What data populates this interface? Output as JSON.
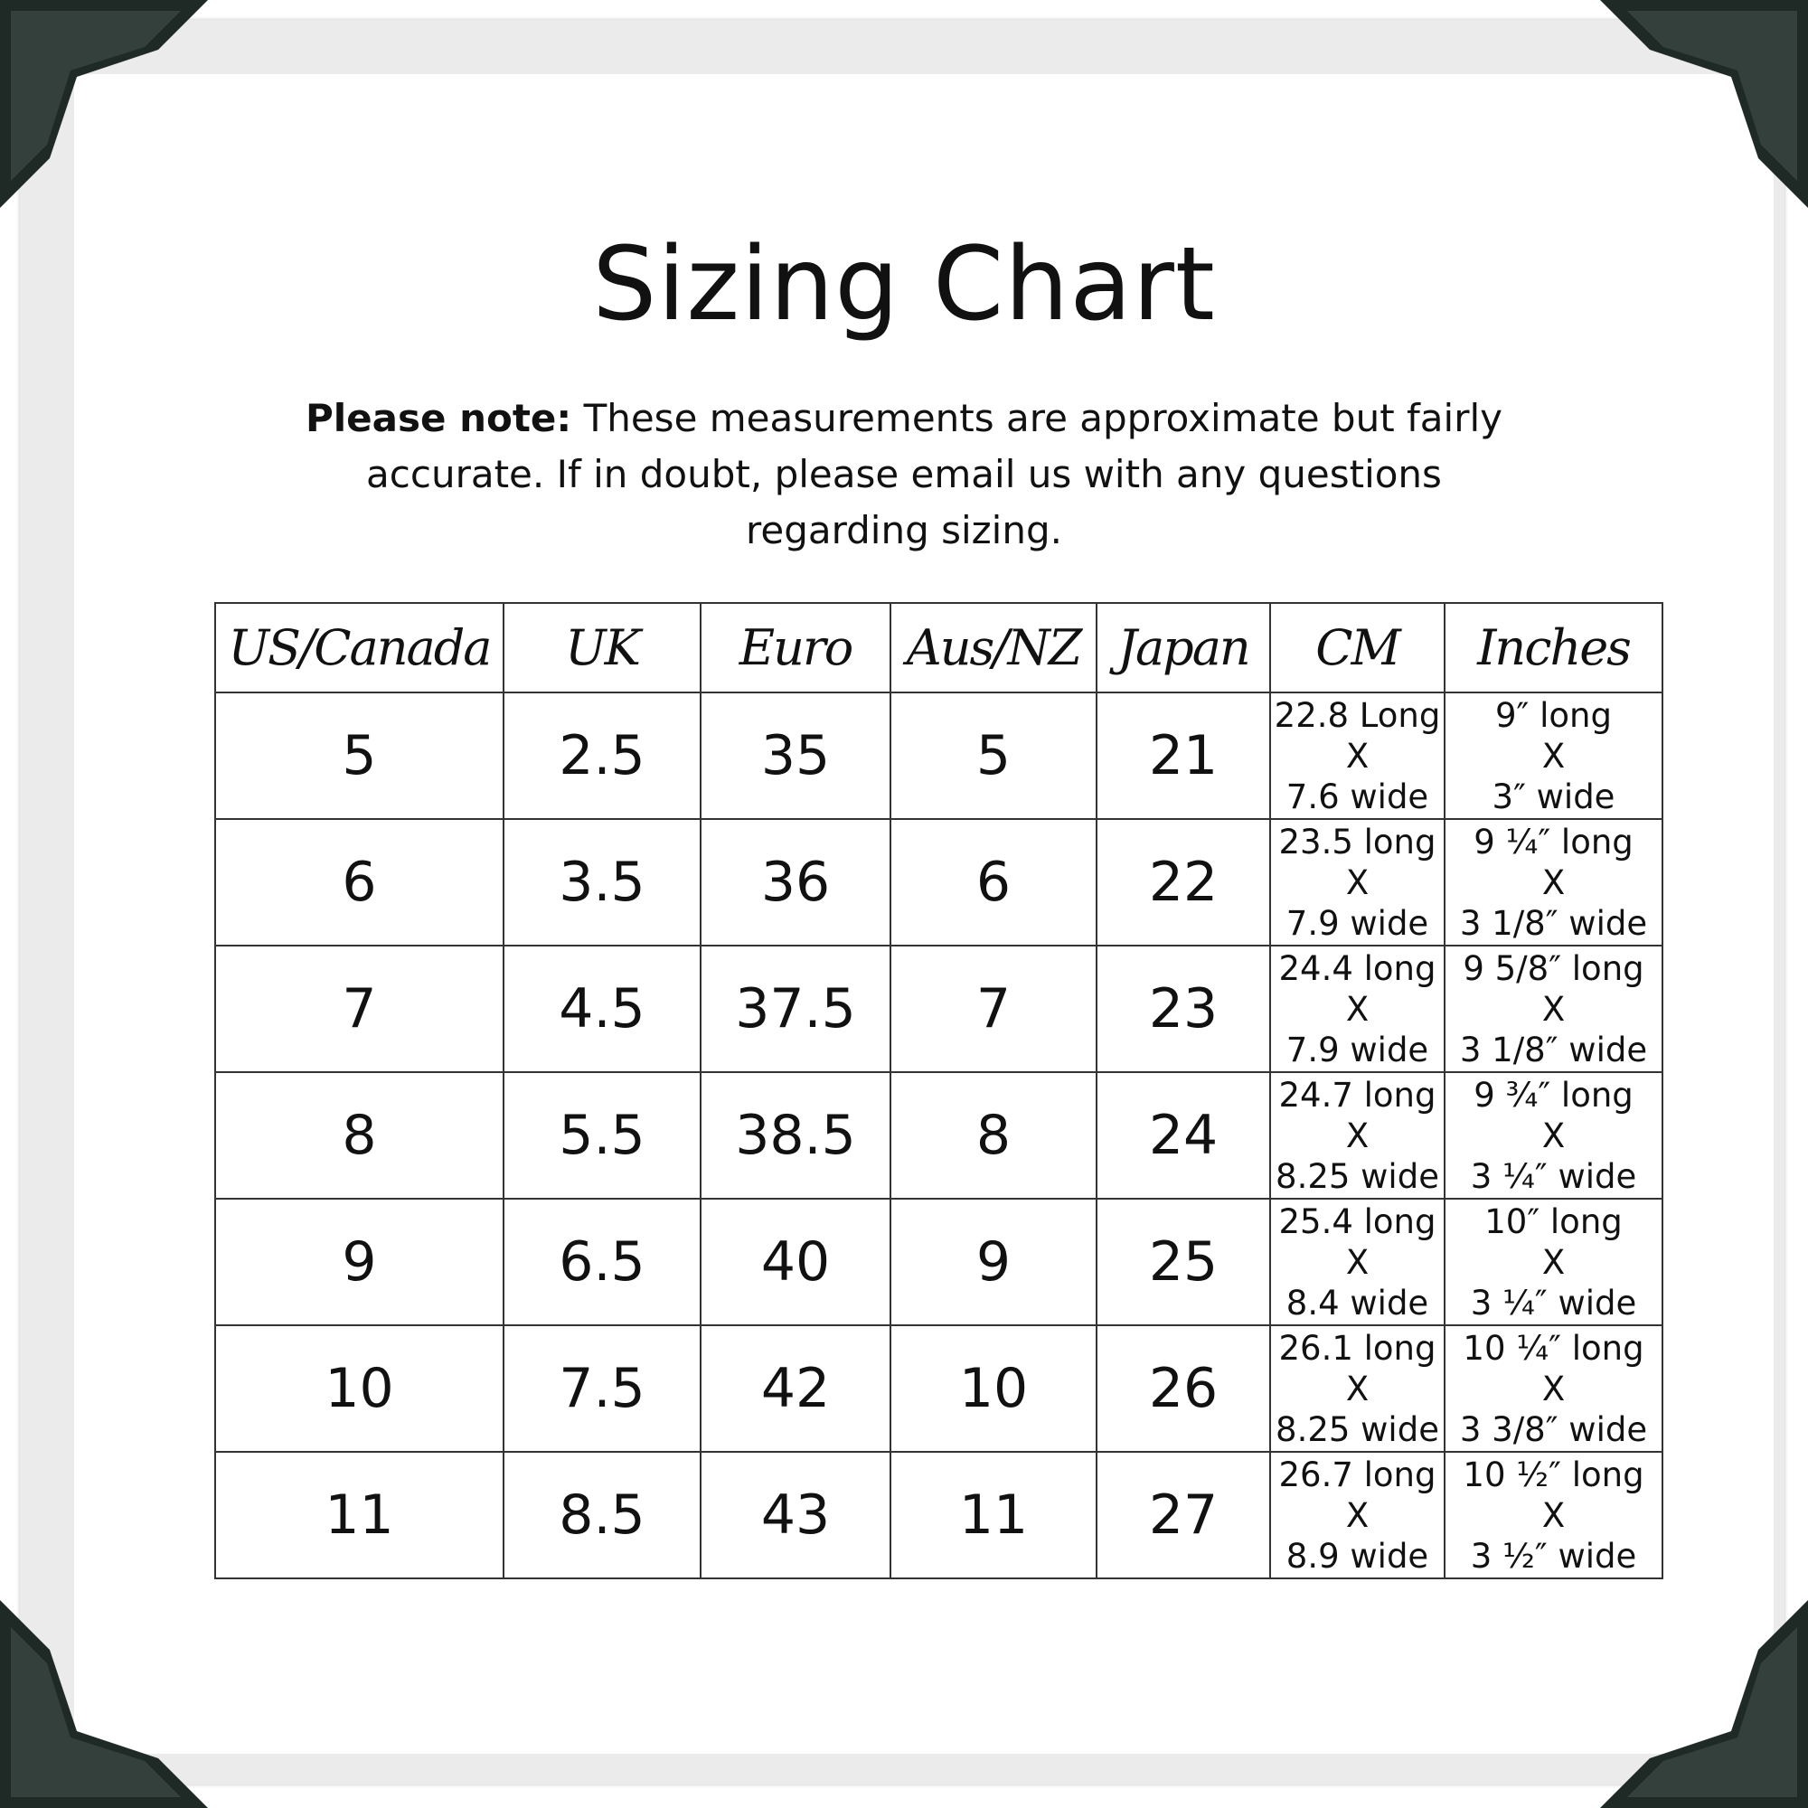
{
  "title": "Sizing Chart",
  "note": {
    "label": "Please note:",
    "text": " These measurements are approximate but fairly accurate. If in doubt, please email us with any questions regarding sizing."
  },
  "colors": {
    "corner": "#1f2a26",
    "frame": "#ebebeb",
    "border": "#333333"
  },
  "table": {
    "headers": [
      "US/Canada",
      "UK",
      "Euro",
      "Aus/NZ",
      "Japan",
      "CM",
      "Inches"
    ],
    "rows": [
      {
        "us": "5",
        "uk": "2.5",
        "euro": "35",
        "aus": "5",
        "japan": "21",
        "cm": [
          "22.8 Long",
          "X",
          "7.6 wide"
        ],
        "in": [
          "9″ long",
          "X",
          "3″ wide"
        ]
      },
      {
        "us": "6",
        "uk": "3.5",
        "euro": "36",
        "aus": "6",
        "japan": "22",
        "cm": [
          "23.5 long",
          "X",
          "7.9 wide"
        ],
        "in": [
          "9 ¼″ long",
          "X",
          "3 1/8″ wide"
        ]
      },
      {
        "us": "7",
        "uk": "4.5",
        "euro": "37.5",
        "aus": "7",
        "japan": "23",
        "cm": [
          "24.4 long",
          "X",
          "7.9 wide"
        ],
        "in": [
          "9 5/8″ long",
          "X",
          "3 1/8″ wide"
        ]
      },
      {
        "us": "8",
        "uk": "5.5",
        "euro": "38.5",
        "aus": "8",
        "japan": "24",
        "cm": [
          "24.7 long",
          "X",
          "8.25 wide"
        ],
        "in": [
          "9 ¾″ long",
          "X",
          "3 ¼″ wide"
        ]
      },
      {
        "us": "9",
        "uk": "6.5",
        "euro": "40",
        "aus": "9",
        "japan": "25",
        "cm": [
          "25.4 long",
          "X",
          "8.4 wide"
        ],
        "in": [
          "10″ long",
          "X",
          "3 ¼″ wide"
        ]
      },
      {
        "us": "10",
        "uk": "7.5",
        "euro": "42",
        "aus": "10",
        "japan": "26",
        "cm": [
          "26.1 long",
          "X",
          "8.25 wide"
        ],
        "in": [
          "10 ¼″ long",
          "X",
          "3 3/8″ wide"
        ]
      },
      {
        "us": "11",
        "uk": "8.5",
        "euro": "43",
        "aus": "11",
        "japan": "27",
        "cm": [
          "26.7 long",
          "X",
          "8.9 wide"
        ],
        "in": [
          "10 ½″ long",
          "X",
          "3 ½″ wide"
        ]
      }
    ]
  }
}
